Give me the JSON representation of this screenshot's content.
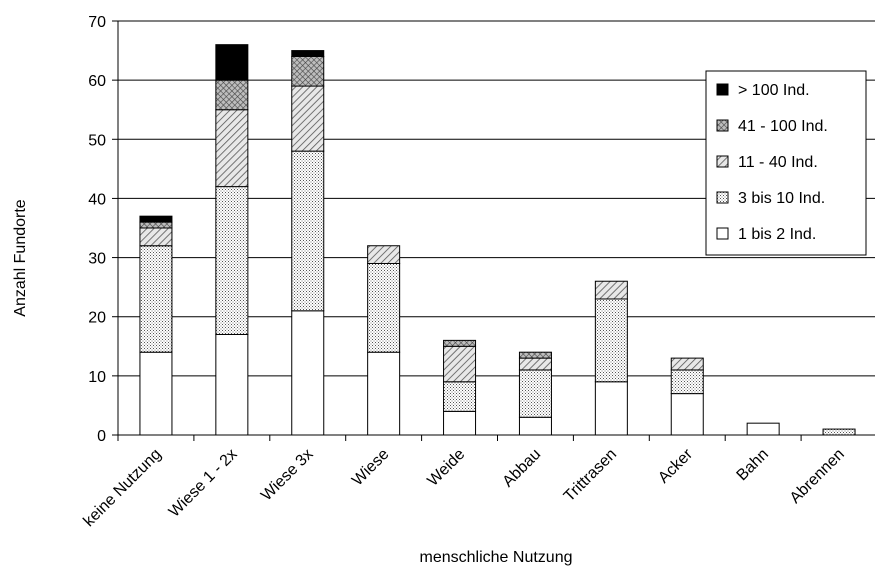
{
  "chart_data": {
    "type": "bar",
    "stacked": true,
    "title": "",
    "xlabel": "menschliche Nutzung",
    "ylabel": "Anzahl Fundorte",
    "ylim": [
      0,
      70
    ],
    "yticks": [
      0,
      10,
      20,
      30,
      40,
      50,
      60,
      70
    ],
    "grid": true,
    "legend_position": "right",
    "categories": [
      "keine Nutzung",
      "Wiese 1 - 2x",
      "Wiese 3x",
      "Wiese",
      "Weide",
      "Abbau",
      "Trittrasen",
      "Acker",
      "Bahn",
      "Abrennen"
    ],
    "series": [
      {
        "name": "1 bis 2 Ind.",
        "pattern": "white",
        "values": [
          14,
          17,
          21,
          14,
          4,
          3,
          9,
          7,
          2,
          0
        ]
      },
      {
        "name": "3 bis 10 Ind.",
        "pattern": "dots",
        "values": [
          18,
          25,
          27,
          15,
          5,
          8,
          14,
          4,
          0,
          1
        ]
      },
      {
        "name": "11 - 40 Ind.",
        "pattern": "hatch",
        "values": [
          3,
          13,
          11,
          3,
          6,
          2,
          3,
          2,
          0,
          0
        ]
      },
      {
        "name": "41 - 100 Ind.",
        "pattern": "crosshatch",
        "values": [
          1,
          5,
          5,
          0,
          1,
          1,
          0,
          0,
          0,
          0
        ]
      },
      {
        "name": "> 100 Ind.",
        "pattern": "black",
        "values": [
          1,
          6,
          1,
          0,
          0,
          0,
          0,
          0,
          0,
          0
        ]
      }
    ],
    "legend_order": [
      "> 100 Ind.",
      "41 - 100 Ind.",
      "11 - 40 Ind.",
      "3 bis 10 Ind.",
      "1 bis 2 Ind."
    ]
  }
}
